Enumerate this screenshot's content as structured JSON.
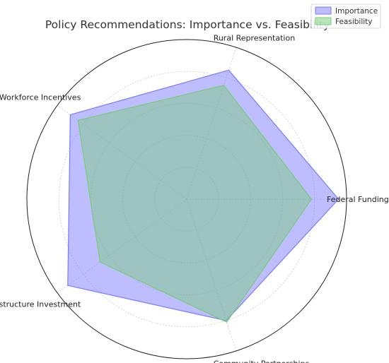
{
  "chart_data": {
    "type": "radar",
    "title": "Policy Recommendations: Importance vs. Feasibility",
    "categories": [
      "Federal Funding",
      "Rural Representation",
      "Workforce Incentives",
      "Infrastructure Investment",
      "Community Partnerships"
    ],
    "series": [
      {
        "name": "Importance",
        "values": [
          9.5,
          8.5,
          9.0,
          9.2,
          8.0
        ],
        "color": "#7b7bff"
      },
      {
        "name": "Feasibility",
        "values": [
          7.8,
          7.5,
          8.4,
          6.7,
          8.1
        ],
        "color": "#77cc77"
      }
    ],
    "rlim": [
      0,
      10
    ],
    "grid": true,
    "legend_position": "top-right"
  }
}
